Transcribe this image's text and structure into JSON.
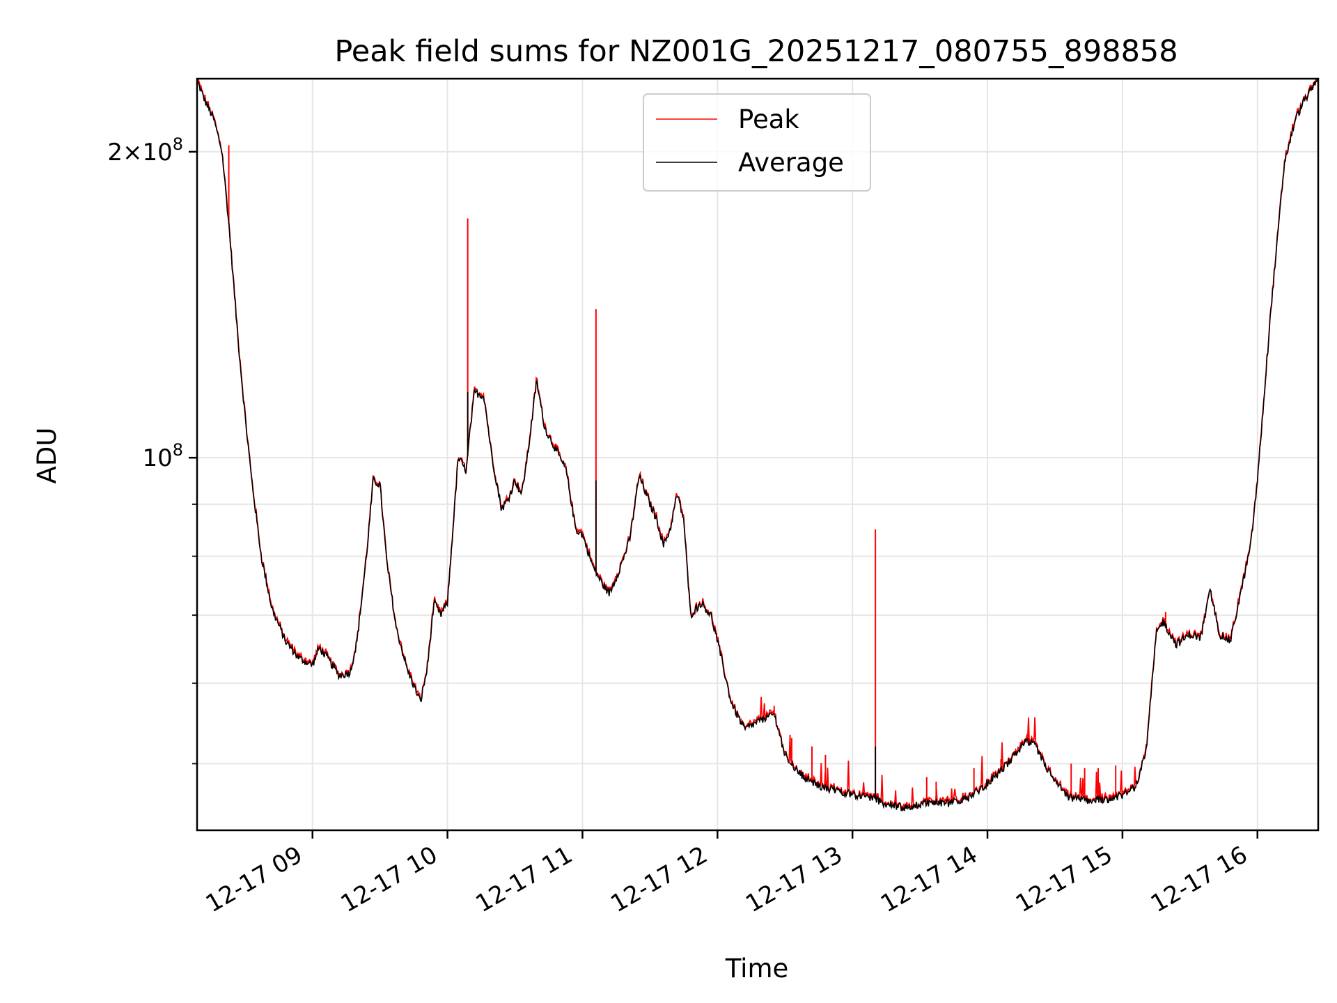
{
  "chart_data": {
    "type": "line",
    "title": "Peak field sums for NZ001G_20251217_080755_898858",
    "xlabel": "Time",
    "ylabel": "ADU",
    "yscale": "log",
    "ylim": [
      43000000,
      236000000
    ],
    "xlim_hours": [
      8.145,
      16.45
    ],
    "x_ticks": [
      {
        "value": 9,
        "label": "12-17 09"
      },
      {
        "value": 10,
        "label": "12-17 10"
      },
      {
        "value": 11,
        "label": "12-17 11"
      },
      {
        "value": 12,
        "label": "12-17 12"
      },
      {
        "value": 13,
        "label": "12-17 13"
      },
      {
        "value": 14,
        "label": "12-17 14"
      },
      {
        "value": 15,
        "label": "12-17 15"
      },
      {
        "value": 16,
        "label": "12-17 16"
      }
    ],
    "y_major_ticks": [
      {
        "value": 200000000,
        "mantissa": "2",
        "times": "×",
        "base": "10",
        "exp": "8"
      },
      {
        "value": 100000000,
        "mantissa": "",
        "times": "",
        "base": "10",
        "exp": "8"
      }
    ],
    "y_minor_ticks": [
      50000000,
      60000000,
      70000000,
      80000000,
      90000000
    ],
    "grid": true,
    "legend": {
      "position": "upper center",
      "entries": [
        "Peak",
        "Average"
      ]
    },
    "colors": {
      "Peak": "#ff0000",
      "Average": "#000000"
    },
    "average_series": {
      "name": "Average",
      "x": [
        8.15,
        8.2,
        8.27,
        8.33,
        8.38,
        8.45,
        8.5,
        8.55,
        8.62,
        8.7,
        8.8,
        8.9,
        8.97,
        9.0,
        9.05,
        9.1,
        9.2,
        9.28,
        9.33,
        9.4,
        9.45,
        9.5,
        9.55,
        9.62,
        9.7,
        9.8,
        9.85,
        9.9,
        9.95,
        10.0,
        10.08,
        10.14,
        10.16,
        10.2,
        10.27,
        10.33,
        10.4,
        10.45,
        10.5,
        10.55,
        10.6,
        10.66,
        10.72,
        10.8,
        10.88,
        10.95,
        11.0,
        11.08,
        11.15,
        11.2,
        11.28,
        11.35,
        11.42,
        11.5,
        11.55,
        11.6,
        11.65,
        11.7,
        11.75,
        11.8,
        11.88,
        11.95,
        12.0,
        12.1,
        12.2,
        12.3,
        12.42,
        12.5,
        12.6,
        12.75,
        12.9,
        13.05,
        13.15,
        13.25,
        13.4,
        13.55,
        13.7,
        13.85,
        14.0,
        14.15,
        14.28,
        14.35,
        14.42,
        14.5,
        14.6,
        14.75,
        14.9,
        15.0,
        15.1,
        15.18,
        15.25,
        15.3,
        15.4,
        15.5,
        15.58,
        15.65,
        15.72,
        15.8,
        15.88,
        15.95,
        16.0,
        16.05,
        16.1,
        16.15,
        16.2,
        16.28,
        16.35,
        16.4,
        16.45
      ],
      "y": [
        234000000,
        225000000,
        215000000,
        200000000,
        170000000,
        130000000,
        110000000,
        95000000,
        80000000,
        71000000,
        66000000,
        63500000,
        62800000,
        62500000,
        65000000,
        63800000,
        61000000,
        61500000,
        66000000,
        80000000,
        95000000,
        94000000,
        79000000,
        68000000,
        62000000,
        57500000,
        62000000,
        72000000,
        70000000,
        72000000,
        100000000,
        97000000,
        104000000,
        116000000,
        115000000,
        100000000,
        89000000,
        91000000,
        95000000,
        92000000,
        102000000,
        119000000,
        107000000,
        102000000,
        97000000,
        85000000,
        84000000,
        78000000,
        75000000,
        73500000,
        78000000,
        83000000,
        96000000,
        90000000,
        87000000,
        82000000,
        85000000,
        92000000,
        87000000,
        70000000,
        72000000,
        70000000,
        66000000,
        57500000,
        54000000,
        55000000,
        56000000,
        51000000,
        49000000,
        47500000,
        47000000,
        46500000,
        46300000,
        45600000,
        45200000,
        45800000,
        45700000,
        46200000,
        47800000,
        50000000,
        52500000,
        52200000,
        50000000,
        48000000,
        46300000,
        46000000,
        46200000,
        46500000,
        47500000,
        52000000,
        67000000,
        69000000,
        65500000,
        67000000,
        66500000,
        74000000,
        67000000,
        66000000,
        74000000,
        82000000,
        95000000,
        115000000,
        140000000,
        165000000,
        195000000,
        215000000,
        225000000,
        230000000,
        236000000
      ]
    },
    "peak_spikes": [
      {
        "x": 8.38,
        "y": 203000000
      },
      {
        "x": 10.15,
        "y": 172000000
      },
      {
        "x": 11.1,
        "y": 140000000
      },
      {
        "x": 13.17,
        "y": 85000000
      },
      {
        "x": 12.42,
        "y": 57000000
      },
      {
        "x": 12.55,
        "y": 53000000
      },
      {
        "x": 12.7,
        "y": 52000000
      },
      {
        "x": 12.8,
        "y": 51000000
      },
      {
        "x": 13.55,
        "y": 48500000
      },
      {
        "x": 13.62,
        "y": 48000000
      },
      {
        "x": 13.9,
        "y": 49500000
      },
      {
        "x": 14.1,
        "y": 50500000
      },
      {
        "x": 14.3,
        "y": 53500000
      },
      {
        "x": 14.62,
        "y": 50000000
      },
      {
        "x": 14.72,
        "y": 49500000
      },
      {
        "x": 14.82,
        "y": 49500000
      },
      {
        "x": 14.95,
        "y": 49800000
      },
      {
        "x": 15.32,
        "y": 70500000
      }
    ]
  }
}
